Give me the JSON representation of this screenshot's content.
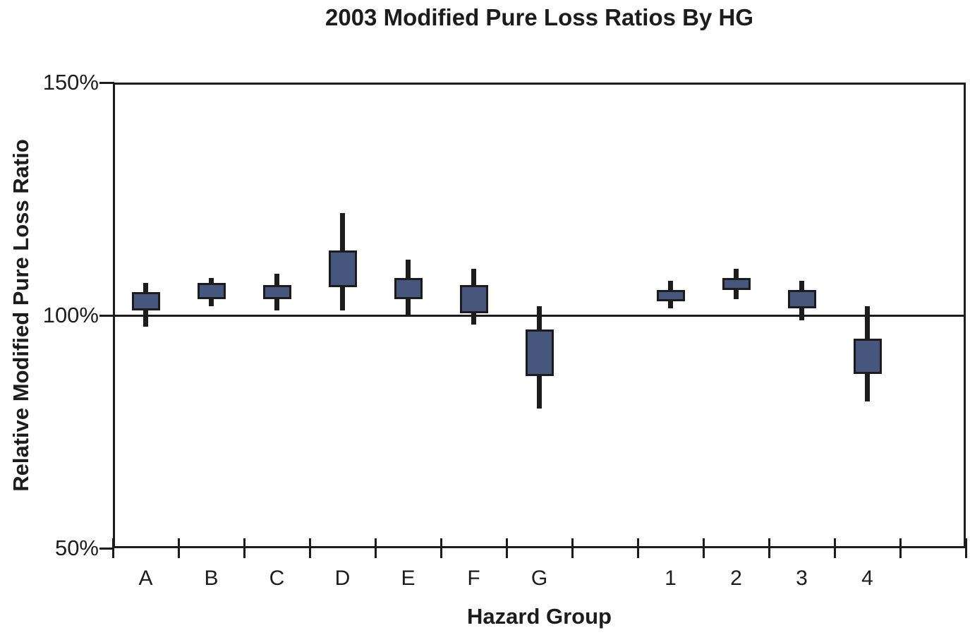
{
  "chart_data": {
    "type": "box",
    "title": "2003 Modified Pure Loss Ratios By HG",
    "xlabel": "Hazard Group",
    "ylabel": "Relative Modified Pure Loss Ratio",
    "ylim": [
      50,
      150
    ],
    "yticks": [
      {
        "value": 150,
        "label": "150%"
      },
      {
        "value": 100,
        "label": "100%"
      },
      {
        "value": 50,
        "label": "50%"
      }
    ],
    "reference_line": 100,
    "num_slots": 13,
    "legend": "none",
    "grid": "off",
    "points": [
      {
        "category": "A",
        "slot": 0,
        "high": 107,
        "box_top": 105,
        "box_bottom": 101,
        "low": 97.5
      },
      {
        "category": "B",
        "slot": 1,
        "high": 108,
        "box_top": 107,
        "box_bottom": 103.5,
        "low": 102
      },
      {
        "category": "C",
        "slot": 2,
        "high": 109,
        "box_top": 106.5,
        "box_bottom": 103.5,
        "low": 101
      },
      {
        "category": "D",
        "slot": 3,
        "high": 122,
        "box_top": 114,
        "box_bottom": 106,
        "low": 101
      },
      {
        "category": "E",
        "slot": 4,
        "high": 112,
        "box_top": 108,
        "box_bottom": 103.5,
        "low": 100
      },
      {
        "category": "F",
        "slot": 5,
        "high": 110,
        "box_top": 106.5,
        "box_bottom": 100.5,
        "low": 98
      },
      {
        "category": "G",
        "slot": 6,
        "high": 102,
        "box_top": 97,
        "box_bottom": 87,
        "low": 80
      },
      {
        "category": "1",
        "slot": 8,
        "high": 107.5,
        "box_top": 105.5,
        "box_bottom": 103,
        "low": 101.5
      },
      {
        "category": "2",
        "slot": 9,
        "high": 110,
        "box_top": 108,
        "box_bottom": 105.5,
        "low": 103.5
      },
      {
        "category": "3",
        "slot": 10,
        "high": 107.5,
        "box_top": 105.5,
        "box_bottom": 101.5,
        "low": 99
      },
      {
        "category": "4",
        "slot": 11,
        "high": 102,
        "box_top": 95,
        "box_bottom": 87.5,
        "low": 81.5
      }
    ],
    "colors": {
      "box_fill": "#46567D",
      "line": "#1c1c1c"
    }
  }
}
